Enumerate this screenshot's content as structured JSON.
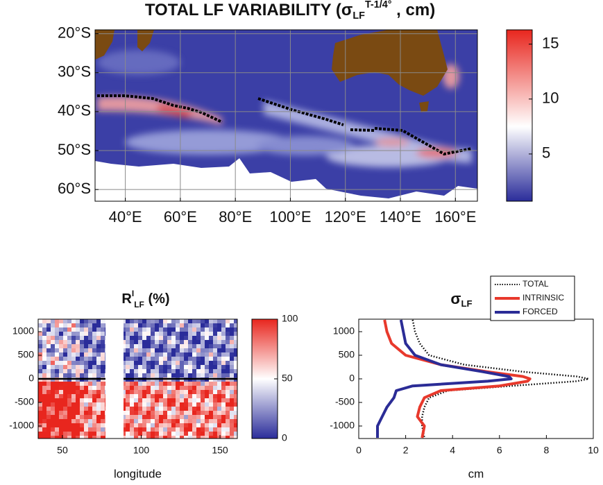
{
  "chart_data": [
    {
      "type": "map",
      "title": "TOTAL LF VARIABILITY (σ",
      "title_sub": "LF",
      "title_sup": "T-1/4°",
      "title_end": " , cm)",
      "xlim": [
        29,
        168
      ],
      "ylim": [
        -63,
        -19
      ],
      "xticks": [
        {
          "value": 40,
          "label": "40°E"
        },
        {
          "value": 60,
          "label": "60°E"
        },
        {
          "value": 80,
          "label": "80°E"
        },
        {
          "value": 100,
          "label": "100°E"
        },
        {
          "value": 120,
          "label": "120°E"
        },
        {
          "value": 140,
          "label": "140°E"
        },
        {
          "value": 160,
          "label": "160°E"
        }
      ],
      "yticks": [
        {
          "value": -20,
          "label": "20°S"
        },
        {
          "value": -30,
          "label": "30°S"
        },
        {
          "value": -40,
          "label": "40°S"
        },
        {
          "value": -50,
          "label": "50°S"
        },
        {
          "value": -60,
          "label": "60°S"
        }
      ],
      "grid": true,
      "clim": [
        0.7,
        16.3
      ],
      "cticks": [
        5,
        10,
        15
      ],
      "colors": [
        "#2a2c9a",
        "#ffffff",
        "#e8261e"
      ],
      "cmid": 7.5
    },
    {
      "type": "heatmap",
      "title": "R",
      "title_sup": "I",
      "title_sub": "LF",
      "title_end": " (%)",
      "xlabel": "longitude",
      "xlim": [
        34.6,
        161
      ],
      "ylim": [
        -1265,
        1265
      ],
      "xticks": [
        50,
        100,
        150
      ],
      "yticks": [
        1000,
        500,
        0,
        -500,
        -1000
      ],
      "clim": [
        0,
        100
      ],
      "cticks": [
        0,
        50,
        100
      ],
      "colors": [
        "#2a2c9a",
        "#ffffff",
        "#e8261e"
      ],
      "cmid": 50
    },
    {
      "type": "line",
      "title": "σ",
      "title_sub": "LF",
      "xlabel": "cm",
      "xlim": [
        0,
        10
      ],
      "ylim": [
        -1265,
        1265
      ],
      "xticks": [
        0,
        2,
        4,
        6,
        8,
        10
      ],
      "yticks": [
        1000,
        500,
        0,
        -500,
        -1000
      ],
      "legend": "upper right",
      "y": [
        1250,
        1000,
        750,
        500,
        300,
        150,
        50,
        0,
        -50,
        -150,
        -250,
        -400,
        -600,
        -800,
        -1000,
        -1250
      ],
      "series": [
        {
          "name": "TOTAL",
          "color": "#000000",
          "linestyle": "dotted",
          "values": [
            2.3,
            2.4,
            2.6,
            3.0,
            4.5,
            7.0,
            9.3,
            9.8,
            9.3,
            6.5,
            3.8,
            3.0,
            2.8,
            2.7,
            2.7,
            2.8
          ]
        },
        {
          "name": "INTRINSIC",
          "color": "#e8392c",
          "linestyle": "solid",
          "values": [
            1.1,
            1.2,
            1.4,
            2.0,
            3.5,
            5.5,
            7.0,
            7.3,
            7.2,
            6.0,
            3.5,
            2.8,
            2.6,
            2.5,
            2.8,
            2.7
          ]
        },
        {
          "name": "FORCED",
          "color": "#2b2c96",
          "linestyle": "solid",
          "values": [
            1.8,
            1.9,
            2.0,
            2.4,
            3.5,
            5.3,
            6.4,
            6.5,
            5.5,
            2.3,
            1.6,
            1.5,
            1.2,
            1.0,
            0.8,
            0.8
          ]
        }
      ]
    }
  ]
}
